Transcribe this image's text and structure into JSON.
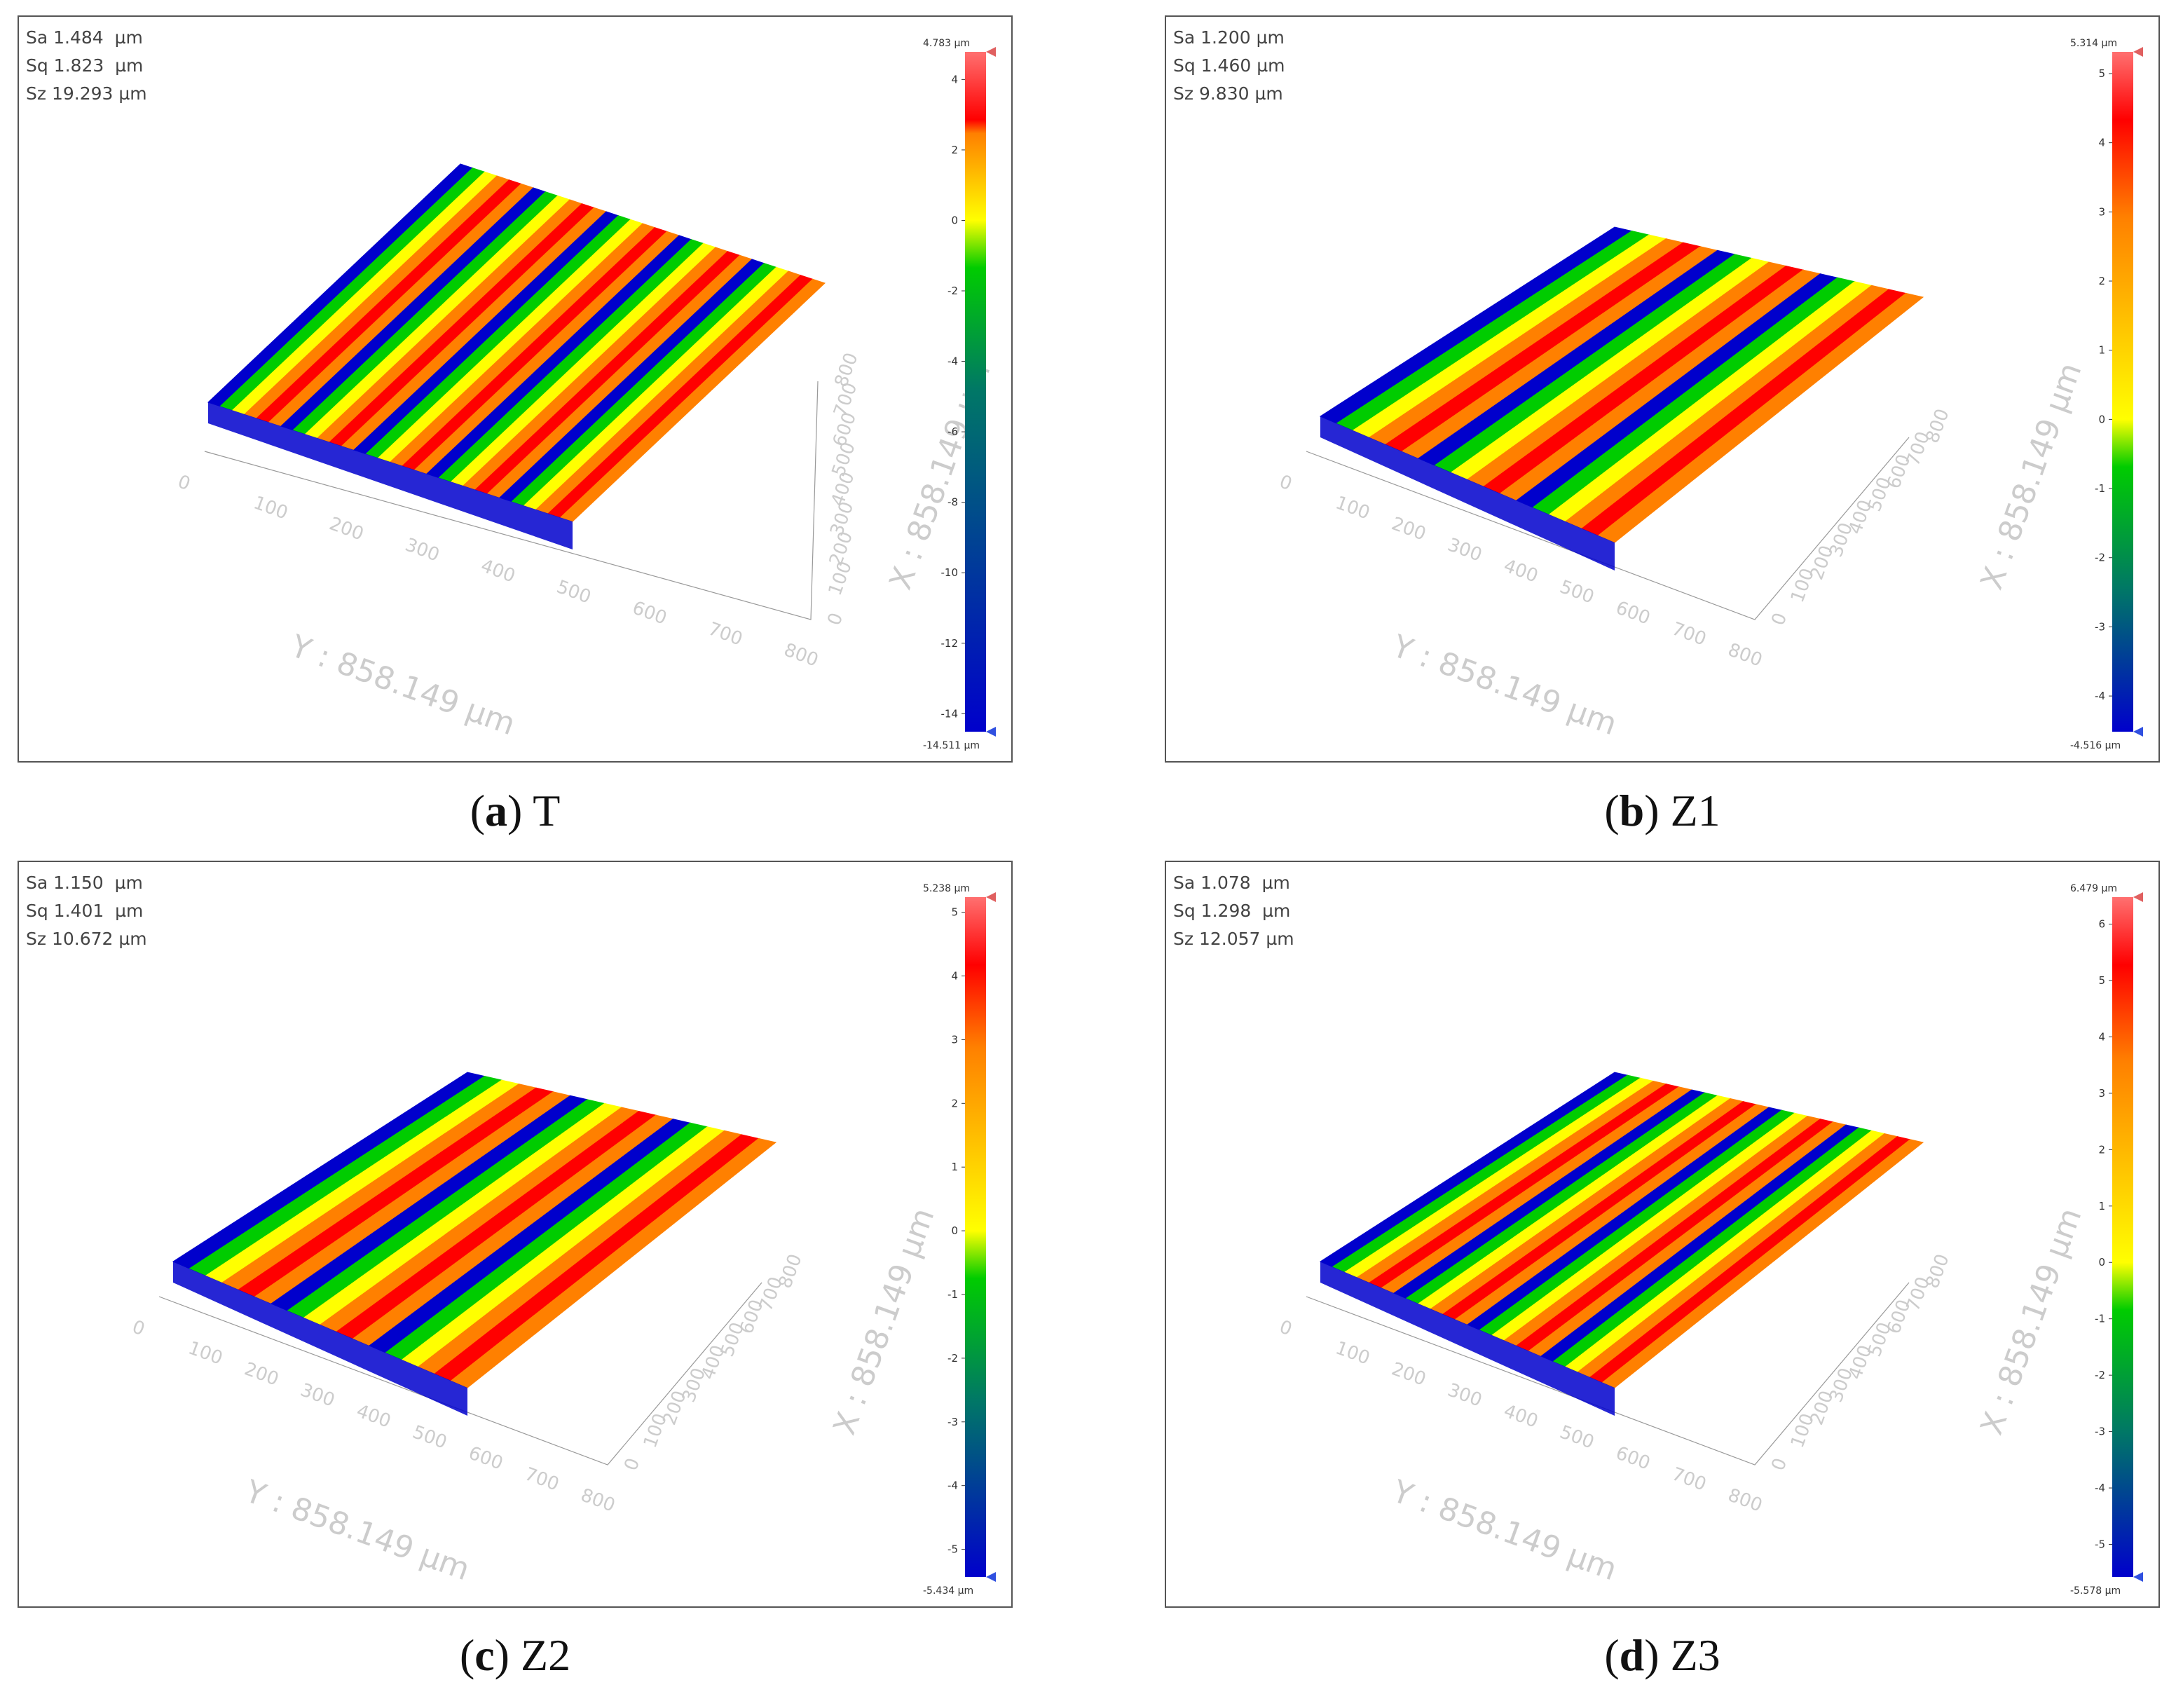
{
  "panels": [
    {
      "id": "a",
      "caption_letter": "a",
      "caption_label": "T",
      "stats": {
        "sa": "Sa 1.484  µm",
        "sq": "Sq 1.823  µm",
        "sz": "Sz 19.293 µm"
      },
      "colorbar": {
        "max_label": "4.783 µm",
        "min_label": "-14.511 µm",
        "max": 4.783,
        "min": -14.511,
        "ticks": [
          "4",
          "2",
          "0",
          "-2",
          "-4",
          "-6",
          "-8",
          "-10",
          "-12",
          "-14"
        ],
        "tick_values": [
          4,
          2,
          0,
          -2,
          -4,
          -6,
          -8,
          -10,
          -12,
          -14
        ]
      },
      "x_axis_label": "X : 858.149 µm",
      "y_axis_label": "Y : 858.149 µm",
      "y_ticks": [
        "0",
        "100",
        "200",
        "300",
        "400",
        "500",
        "600",
        "700",
        "800"
      ],
      "x_ticks": [
        "0",
        "100",
        "200",
        "300",
        "400",
        "500",
        "600",
        "700",
        "800"
      ],
      "ridges": 5
    },
    {
      "id": "b",
      "caption_letter": "b",
      "caption_label": "Z1",
      "stats": {
        "sa": "Sa 1.200 µm",
        "sq": "Sq 1.460 µm",
        "sz": "Sz 9.830 µm"
      },
      "colorbar": {
        "max_label": "5.314 µm",
        "min_label": "-4.516 µm",
        "max": 5.314,
        "min": -4.516,
        "ticks": [
          "5",
          "4",
          "3",
          "2",
          "1",
          "0",
          "-1",
          "-2",
          "-3",
          "-4"
        ],
        "tick_values": [
          5,
          4,
          3,
          2,
          1,
          0,
          -1,
          -2,
          -3,
          -4
        ]
      },
      "x_axis_label": "X : 858.149 µm",
      "y_axis_label": "Y : 858.149 µm",
      "y_ticks": [
        "0",
        "100",
        "200",
        "300",
        "400",
        "500",
        "600",
        "700",
        "800"
      ],
      "x_ticks": [
        "0",
        "100",
        "200",
        "300",
        "400",
        "500",
        "600",
        "700",
        "800"
      ],
      "ridges": 3
    },
    {
      "id": "c",
      "caption_letter": "c",
      "caption_label": "Z2",
      "stats": {
        "sa": "Sa 1.150  µm",
        "sq": "Sq 1.401  µm",
        "sz": "Sz 10.672 µm"
      },
      "colorbar": {
        "max_label": "5.238 µm",
        "min_label": "-5.434 µm",
        "max": 5.238,
        "min": -5.434,
        "ticks": [
          "5",
          "4",
          "3",
          "2",
          "1",
          "0",
          "-1",
          "-2",
          "-3",
          "-4",
          "-5"
        ],
        "tick_values": [
          5,
          4,
          3,
          2,
          1,
          0,
          -1,
          -2,
          -3,
          -4,
          -5
        ]
      },
      "x_axis_label": "X : 858.149 µm",
      "y_axis_label": "Y : 858.149 µm",
      "y_ticks": [
        "0",
        "100",
        "200",
        "300",
        "400",
        "500",
        "600",
        "700",
        "800"
      ],
      "x_ticks": [
        "0",
        "100",
        "200",
        "300",
        "400",
        "500",
        "600",
        "700",
        "800"
      ],
      "ridges": 3
    },
    {
      "id": "d",
      "caption_letter": "d",
      "caption_label": "Z3",
      "stats": {
        "sa": "Sa 1.078  µm",
        "sq": "Sq 1.298  µm",
        "sz": "Sz 12.057 µm"
      },
      "colorbar": {
        "max_label": "6.479 µm",
        "min_label": "-5.578 µm",
        "max": 6.479,
        "min": -5.578,
        "ticks": [
          "6",
          "5",
          "4",
          "3",
          "2",
          "1",
          "0",
          "-1",
          "-2",
          "-3",
          "-4",
          "-5"
        ],
        "tick_values": [
          6,
          5,
          4,
          3,
          2,
          1,
          0,
          -1,
          -2,
          -3,
          -4,
          -5
        ]
      },
      "x_axis_label": "X : 858.149 µm",
      "y_axis_label": "Y : 858.149 µm",
      "y_ticks": [
        "0",
        "100",
        "200",
        "300",
        "400",
        "500",
        "600",
        "700",
        "800"
      ],
      "x_ticks": [
        "0",
        "100",
        "200",
        "300",
        "400",
        "500",
        "600",
        "700",
        "800"
      ],
      "ridges": 4
    }
  ],
  "colors": {
    "peak": "#ff0000",
    "high": "#ff8000",
    "mid": "#ffff00",
    "low_mid": "#00cc00",
    "low": "#0000cc",
    "panel_border": "#555555",
    "axis_text": "#cccccc"
  }
}
